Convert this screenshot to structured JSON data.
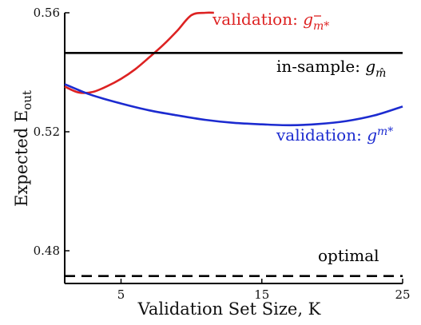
{
  "chart_data": {
    "type": "line",
    "xlabel": "Validation Set Size, K",
    "ylabel": "Expected E",
    "ylabel_sub": "out",
    "xlim": [
      1,
      25
    ],
    "ylim": [
      0.469,
      0.56
    ],
    "x_ticks": [
      5,
      15,
      25
    ],
    "y_ticks": [
      0.48,
      0.52,
      0.56
    ],
    "x_tick_labels": [
      "5",
      "15",
      "25"
    ],
    "y_tick_labels": [
      "0.48",
      "0.52",
      "0.56"
    ],
    "grid": false,
    "legend": "none",
    "series": [
      {
        "name": "validation: g_bar_m*",
        "color": "#dd2222",
        "style": "solid",
        "x": [
          1,
          2,
          3,
          4,
          5,
          6,
          7,
          8,
          9,
          10,
          11,
          11.6
        ],
        "y": [
          0.5352,
          0.5332,
          0.5334,
          0.5353,
          0.5378,
          0.541,
          0.545,
          0.5492,
          0.554,
          0.5592,
          0.565,
          0.569
        ]
      },
      {
        "name": "validation: g_m*",
        "color": "#1c2bd0",
        "style": "solid",
        "x": [
          1,
          2,
          3,
          5,
          7,
          9,
          11,
          13,
          15,
          17,
          19,
          21,
          23,
          25
        ],
        "y": [
          0.536,
          0.534,
          0.5322,
          0.5295,
          0.5272,
          0.5255,
          0.524,
          0.523,
          0.5225,
          0.5222,
          0.5226,
          0.5236,
          0.5255,
          0.5285
        ]
      },
      {
        "name": "in-sample: g_m_hat",
        "color": "#000000",
        "style": "solid",
        "x": [
          1,
          25
        ],
        "y": [
          0.5465,
          0.5465
        ]
      },
      {
        "name": "optimal",
        "color": "#000000",
        "style": "dashed",
        "x": [
          1,
          25
        ],
        "y": [
          0.4715,
          0.4715
        ]
      }
    ],
    "annotations": {
      "validation_bar": {
        "prefix": "validation: ",
        "math": "g",
        "sub": "m*",
        "color": "#dd2222"
      },
      "insample": {
        "prefix": "in-sample: ",
        "math": "g",
        "sub": "m̂",
        "color": "#000000"
      },
      "validation": {
        "prefix": "validation: ",
        "math": "g",
        "sub": "m*",
        "color": "#1c2bd0"
      },
      "optimal": {
        "text": "optimal",
        "color": "#000000"
      }
    }
  }
}
